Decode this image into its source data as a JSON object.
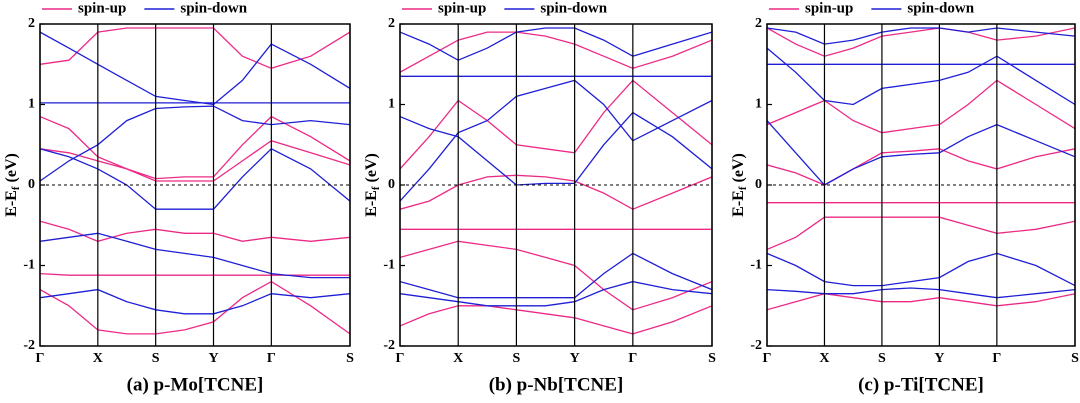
{
  "chart_data": [
    {
      "type": "bands",
      "title": "(a) p-Mo[TCNE]",
      "ylabel": {
        "main": "E-E",
        "sub": "f",
        "unit": "(eV)"
      },
      "x": [
        0,
        0.5,
        1,
        1.5,
        2,
        2.5,
        3,
        3.5,
        4,
        4.68,
        5.36
      ],
      "xlim": [
        0,
        5.36
      ],
      "xticks": [
        {
          "value": 0,
          "label": "Γ"
        },
        {
          "value": 1,
          "label": "X"
        },
        {
          "value": 2,
          "label": "S"
        },
        {
          "value": 3,
          "label": "Y"
        },
        {
          "value": 4,
          "label": "Γ"
        },
        {
          "value": 5.36,
          "label": "S"
        }
      ],
      "ylim": [
        -2,
        2
      ],
      "yticks": [
        -2,
        -1,
        0,
        1,
        2
      ],
      "fermi_level": 0,
      "series": [
        {
          "name": "spin-up",
          "color": "#ec2a86",
          "bands": [
            [
              0.85,
              0.7,
              0.35,
              0.2,
              0.08,
              0.1,
              0.1,
              0.5,
              0.85,
              0.6,
              0.3
            ],
            [
              0.45,
              0.4,
              0.3,
              0.2,
              0.05,
              0.05,
              0.05,
              0.3,
              0.55,
              0.4,
              0.25
            ],
            [
              -0.45,
              -0.55,
              -0.7,
              -0.6,
              -0.55,
              -0.6,
              -0.6,
              -0.7,
              -0.65,
              -0.7,
              -0.65
            ],
            [
              -1.1,
              -1.12,
              -1.12,
              -1.12,
              -1.12,
              -1.12,
              -1.12,
              -1.12,
              -1.12,
              -1.12,
              -1.12
            ],
            [
              -1.3,
              -1.5,
              -1.8,
              -1.85,
              -1.85,
              -1.8,
              -1.7,
              -1.4,
              -1.2,
              -1.5,
              -1.85
            ],
            [
              1.5,
              1.55,
              1.9,
              1.95,
              1.95,
              1.95,
              1.95,
              1.6,
              1.45,
              1.6,
              1.9
            ]
          ]
        },
        {
          "name": "spin-down",
          "color": "#1f1fd6",
          "bands": [
            [
              1.02,
              1.02,
              1.02,
              1.02,
              1.02,
              1.02,
              1.02,
              1.02,
              1.02,
              1.02,
              1.02
            ],
            [
              0.45,
              0.35,
              0.2,
              0.0,
              -0.3,
              -0.3,
              -0.3,
              0.1,
              0.45,
              0.2,
              -0.2
            ],
            [
              0.05,
              0.3,
              0.5,
              0.8,
              0.95,
              0.97,
              0.98,
              0.8,
              0.75,
              0.8,
              0.75
            ],
            [
              -0.7,
              -0.65,
              -0.6,
              -0.7,
              -0.8,
              -0.85,
              -0.9,
              -1.0,
              -1.1,
              -1.15,
              -1.15
            ],
            [
              -1.4,
              -1.35,
              -1.3,
              -1.45,
              -1.55,
              -1.6,
              -1.6,
              -1.5,
              -1.35,
              -1.4,
              -1.35
            ],
            [
              1.9,
              1.7,
              1.5,
              1.3,
              1.1,
              1.05,
              1.0,
              1.3,
              1.75,
              1.5,
              1.2
            ]
          ]
        }
      ]
    },
    {
      "type": "bands",
      "title": "(b) p-Nb[TCNE]",
      "ylabel": {
        "main": "E-E",
        "sub": "f",
        "unit": "(eV)"
      },
      "x": [
        0,
        0.5,
        1,
        1.5,
        2,
        2.5,
        3,
        3.5,
        4,
        4.68,
        5.36
      ],
      "xlim": [
        0,
        5.36
      ],
      "xticks": [
        {
          "value": 0,
          "label": "Γ"
        },
        {
          "value": 1,
          "label": "X"
        },
        {
          "value": 2,
          "label": "S"
        },
        {
          "value": 3,
          "label": "Y"
        },
        {
          "value": 4,
          "label": "Γ"
        },
        {
          "value": 5.36,
          "label": "S"
        }
      ],
      "ylim": [
        -2,
        2
      ],
      "yticks": [
        -2,
        -1,
        0,
        1,
        2
      ],
      "fermi_level": 0,
      "series": [
        {
          "name": "spin-up",
          "color": "#ec2a86",
          "bands": [
            [
              -0.55,
              -0.55,
              -0.55,
              -0.55,
              -0.55,
              -0.55,
              -0.55,
              -0.55,
              -0.55,
              -0.55,
              -0.55
            ],
            [
              0.2,
              0.6,
              1.05,
              0.8,
              0.5,
              0.45,
              0.4,
              0.9,
              1.3,
              0.9,
              0.5
            ],
            [
              -0.3,
              -0.2,
              0.0,
              0.1,
              0.12,
              0.1,
              0.05,
              -0.1,
              -0.3,
              -0.1,
              0.1
            ],
            [
              -0.9,
              -0.8,
              -0.7,
              -0.75,
              -0.8,
              -0.9,
              -1.0,
              -1.3,
              -1.55,
              -1.4,
              -1.2
            ],
            [
              -1.75,
              -1.6,
              -1.5,
              -1.5,
              -1.55,
              -1.6,
              -1.65,
              -1.75,
              -1.85,
              -1.7,
              -1.5
            ],
            [
              1.4,
              1.6,
              1.8,
              1.9,
              1.9,
              1.85,
              1.75,
              1.6,
              1.45,
              1.6,
              1.8
            ]
          ]
        },
        {
          "name": "spin-down",
          "color": "#1f1fd6",
          "bands": [
            [
              1.35,
              1.35,
              1.35,
              1.35,
              1.35,
              1.35,
              1.35,
              1.35,
              1.35,
              1.35,
              1.35
            ],
            [
              0.85,
              0.7,
              0.6,
              0.3,
              0.0,
              0.02,
              0.02,
              0.5,
              0.9,
              0.6,
              0.2
            ],
            [
              -0.2,
              0.2,
              0.65,
              0.8,
              1.1,
              1.2,
              1.3,
              1.0,
              0.55,
              0.8,
              1.05
            ],
            [
              -1.2,
              -1.3,
              -1.4,
              -1.4,
              -1.4,
              -1.4,
              -1.4,
              -1.1,
              -0.85,
              -1.1,
              -1.3
            ],
            [
              -1.35,
              -1.4,
              -1.45,
              -1.5,
              -1.5,
              -1.5,
              -1.45,
              -1.3,
              -1.2,
              -1.3,
              -1.35
            ],
            [
              1.9,
              1.75,
              1.55,
              1.7,
              1.9,
              1.95,
              1.95,
              1.8,
              1.6,
              1.75,
              1.9
            ]
          ]
        }
      ]
    },
    {
      "type": "bands",
      "title": "(c) p-Ti[TCNE]",
      "ylabel": {
        "main": "E-E",
        "sub": "f",
        "unit": "(eV)"
      },
      "x": [
        0,
        0.5,
        1,
        1.5,
        2,
        2.5,
        3,
        3.5,
        4,
        4.68,
        5.36
      ],
      "xlim": [
        0,
        5.36
      ],
      "xticks": [
        {
          "value": 0,
          "label": "Γ"
        },
        {
          "value": 1,
          "label": "X"
        },
        {
          "value": 2,
          "label": "S"
        },
        {
          "value": 3,
          "label": "Y"
        },
        {
          "value": 4,
          "label": "Γ"
        },
        {
          "value": 5.36,
          "label": "S"
        }
      ],
      "ylim": [
        -2,
        2
      ],
      "yticks": [
        -2,
        -1,
        0,
        1,
        2
      ],
      "fermi_level": 0,
      "series": [
        {
          "name": "spin-up",
          "color": "#ec2a86",
          "bands": [
            [
              -0.22,
              -0.22,
              -0.22,
              -0.22,
              -0.22,
              -0.22,
              -0.22,
              -0.22,
              -0.22,
              -0.22,
              -0.22
            ],
            [
              0.25,
              0.15,
              0.0,
              0.2,
              0.4,
              0.42,
              0.45,
              0.3,
              0.2,
              0.35,
              0.45
            ],
            [
              -0.8,
              -0.65,
              -0.4,
              -0.4,
              -0.4,
              -0.4,
              -0.4,
              -0.5,
              -0.6,
              -0.55,
              -0.45
            ],
            [
              0.75,
              0.9,
              1.05,
              0.8,
              0.65,
              0.7,
              0.75,
              1.0,
              1.3,
              1.0,
              0.7
            ],
            [
              -1.55,
              -1.45,
              -1.35,
              -1.4,
              -1.45,
              -1.45,
              -1.4,
              -1.45,
              -1.5,
              -1.45,
              -1.35
            ],
            [
              1.95,
              1.75,
              1.6,
              1.7,
              1.85,
              1.9,
              1.95,
              1.9,
              1.8,
              1.85,
              1.95
            ]
          ]
        },
        {
          "name": "spin-down",
          "color": "#1f1fd6",
          "bands": [
            [
              1.5,
              1.5,
              1.5,
              1.5,
              1.5,
              1.5,
              1.5,
              1.5,
              1.5,
              1.5,
              1.5
            ],
            [
              0.8,
              0.4,
              0.0,
              0.2,
              0.35,
              0.38,
              0.4,
              0.6,
              0.75,
              0.55,
              0.35
            ],
            [
              -0.85,
              -1.0,
              -1.2,
              -1.25,
              -1.25,
              -1.2,
              -1.15,
              -0.95,
              -0.85,
              -1.0,
              -1.25
            ],
            [
              -1.3,
              -1.32,
              -1.35,
              -1.35,
              -1.3,
              -1.28,
              -1.3,
              -1.35,
              -1.4,
              -1.35,
              -1.3
            ],
            [
              1.7,
              1.4,
              1.05,
              1.0,
              1.2,
              1.25,
              1.3,
              1.4,
              1.6,
              1.3,
              1.0
            ],
            [
              1.95,
              1.9,
              1.75,
              1.8,
              1.9,
              1.95,
              1.95,
              1.9,
              1.95,
              1.9,
              1.85
            ]
          ]
        }
      ]
    }
  ]
}
